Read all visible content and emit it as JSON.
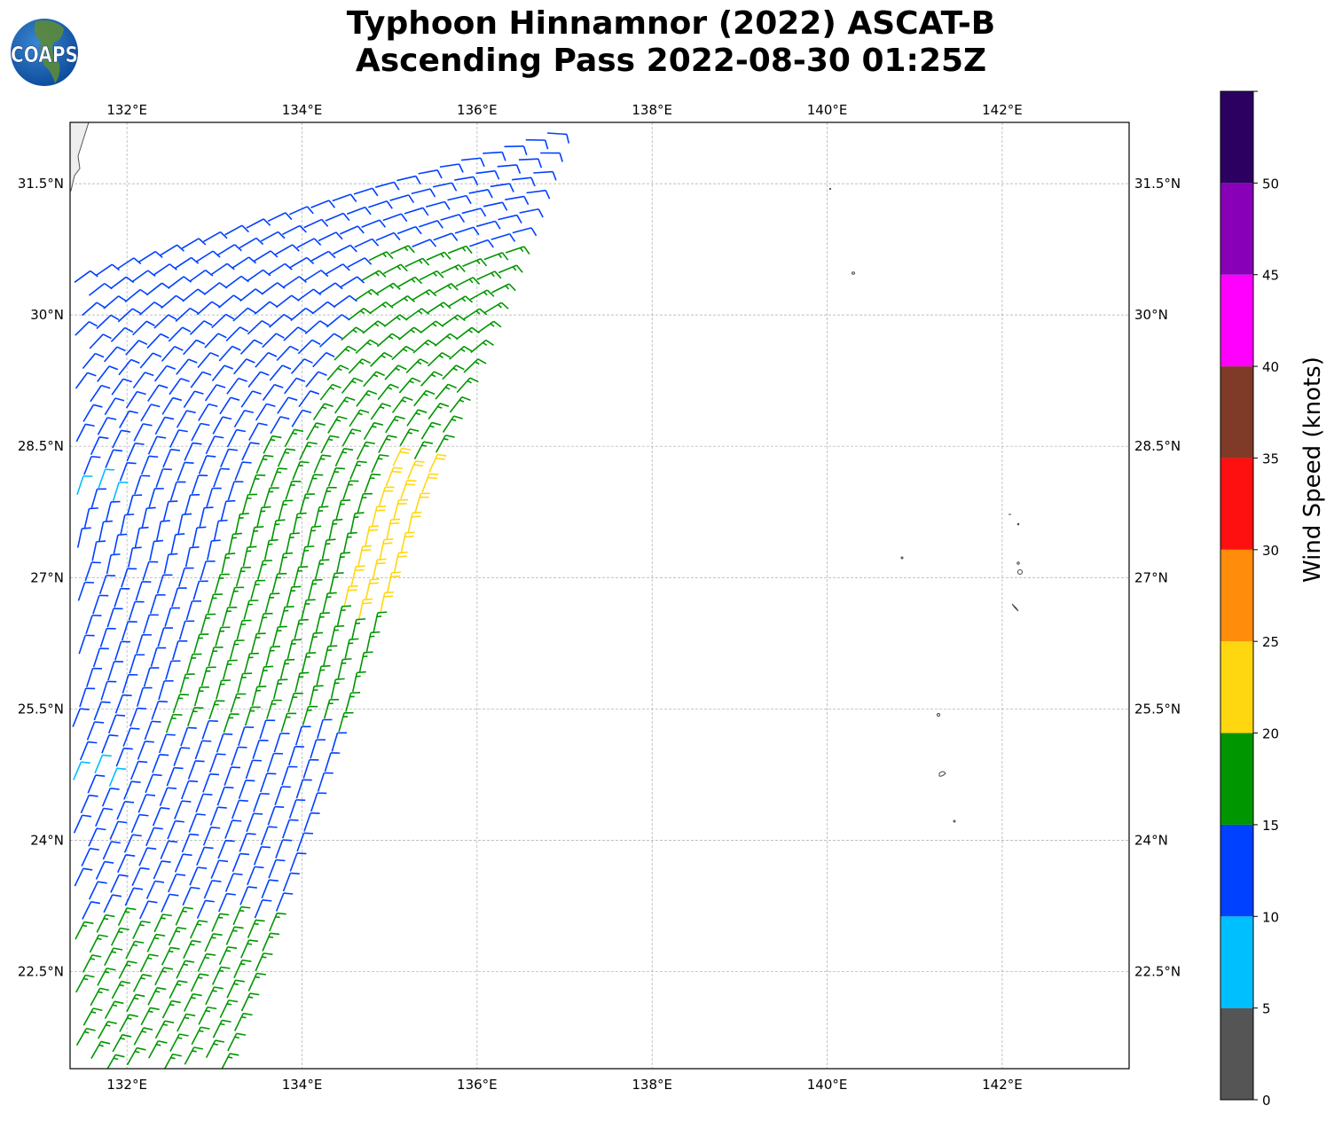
{
  "title": {
    "line1": "Typhoon Hinnamnor (2022) ASCAT-B",
    "line2": "Ascending Pass 2022-08-30 01:25Z"
  },
  "logo": {
    "text": "COAPS"
  },
  "map": {
    "lon_range": [
      131.35,
      143.45
    ],
    "lat_range": [
      21.39,
      32.2
    ],
    "gridlines": true,
    "lon_ticks": [
      {
        "value": 132,
        "label": "132°E"
      },
      {
        "value": 134,
        "label": "134°E"
      },
      {
        "value": 136,
        "label": "136°E"
      },
      {
        "value": 138,
        "label": "138°E"
      },
      {
        "value": 140,
        "label": "140°E"
      },
      {
        "value": 142,
        "label": "142°E"
      }
    ],
    "lat_ticks": [
      {
        "value": 31.5,
        "label": "31.5°N"
      },
      {
        "value": 30,
        "label": "30°N"
      },
      {
        "value": 28.5,
        "label": "28.5°N"
      },
      {
        "value": 27,
        "label": "27°N"
      },
      {
        "value": 25.5,
        "label": "25.5°N"
      },
      {
        "value": 24,
        "label": "24°N"
      },
      {
        "value": 22.5,
        "label": "22.5°N"
      }
    ]
  },
  "colorbar": {
    "label": "Wind Speed (knots)",
    "range": [
      0,
      55
    ],
    "bins": [
      {
        "from": 0,
        "to": 5,
        "color": "#555555"
      },
      {
        "from": 5,
        "to": 10,
        "color": "#00bfff"
      },
      {
        "from": 10,
        "to": 15,
        "color": "#0040ff"
      },
      {
        "from": 15,
        "to": 20,
        "color": "#009600"
      },
      {
        "from": 20,
        "to": 25,
        "color": "#ffd710"
      },
      {
        "from": 25,
        "to": 30,
        "color": "#ff8c0a"
      },
      {
        "from": 30,
        "to": 35,
        "color": "#ff1010"
      },
      {
        "from": 35,
        "to": 40,
        "color": "#803a28"
      },
      {
        "from": 40,
        "to": 45,
        "color": "#ff00ff"
      },
      {
        "from": 45,
        "to": 50,
        "color": "#8800b8"
      },
      {
        "from": 50,
        "to": 55,
        "color": "#2b0060"
      }
    ],
    "ticks": [
      {
        "value": 0,
        "label": "0"
      },
      {
        "value": 5,
        "label": "5"
      },
      {
        "value": 10,
        "label": "10"
      },
      {
        "value": 15,
        "label": "15"
      },
      {
        "value": 20,
        "label": "20"
      },
      {
        "value": 25,
        "label": "25"
      },
      {
        "value": 30,
        "label": "30"
      },
      {
        "value": 35,
        "label": "35"
      },
      {
        "value": 40,
        "label": "40"
      },
      {
        "value": 45,
        "label": "45"
      },
      {
        "value": 50,
        "label": "50"
      }
    ]
  }
}
